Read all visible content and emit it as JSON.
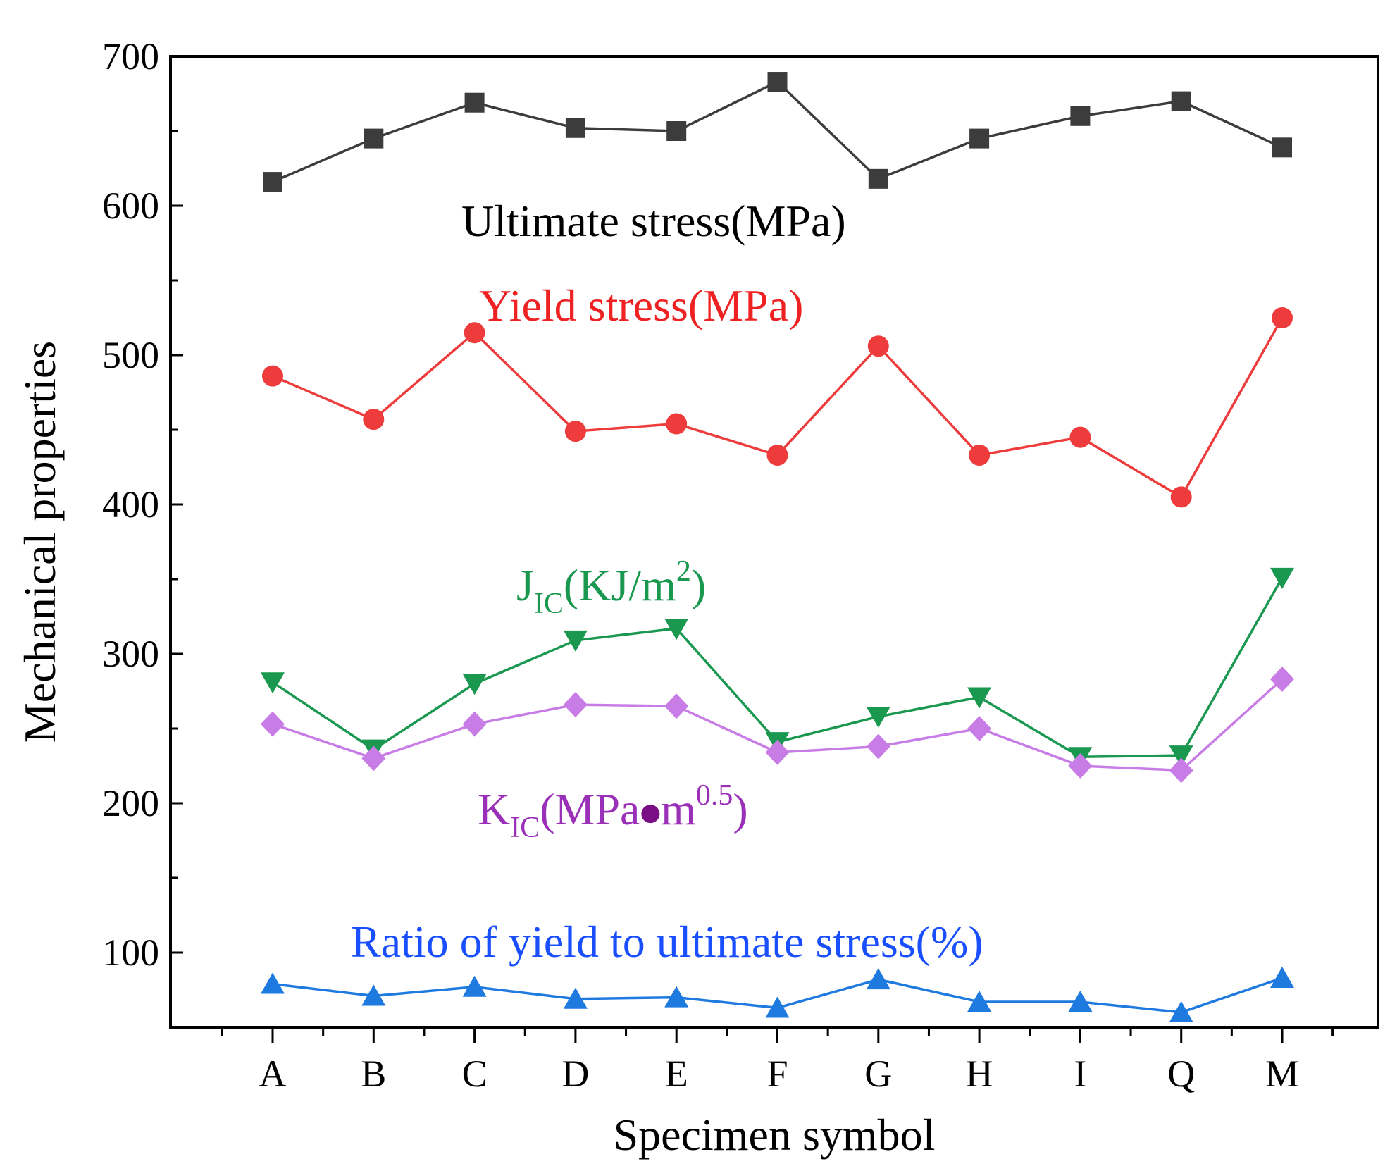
{
  "chart_data": {
    "type": "line",
    "xlabel": "Specimen symbol",
    "ylabel": "Mechanical properties",
    "categories": [
      "A",
      "B",
      "C",
      "D",
      "E",
      "F",
      "G",
      "H",
      "I",
      "Q",
      "M"
    ],
    "ylim": [
      50,
      700
    ],
    "yticks": [
      100,
      200,
      300,
      400,
      500,
      600,
      700
    ],
    "grid": false,
    "series": [
      {
        "name": "Ultimate stress(MPa)",
        "marker": "square",
        "color": "#3c3c3c",
        "values": [
          616,
          645,
          669,
          652,
          650,
          683,
          618,
          645,
          660,
          670,
          639
        ]
      },
      {
        "name": "Yield stress(MPa)",
        "marker": "circle",
        "color": "#ee3b3b",
        "values": [
          486,
          457,
          515,
          449,
          454,
          433,
          506,
          433,
          445,
          405,
          525
        ]
      },
      {
        "name_main": "J",
        "name_sub": "IC",
        "name_rest": "(KJ/m",
        "name_sup": "2",
        "name_end": ")",
        "marker": "triangle-down",
        "color": "#1a9850",
        "values": [
          281,
          236,
          280,
          309,
          317,
          241,
          258,
          271,
          231,
          232,
          351
        ]
      },
      {
        "name_main": "K",
        "name_sub": "IC",
        "name_rest": "(MPa",
        "name_dot": "●",
        "name_rest2": "m",
        "name_sup": "0.5",
        "name_end": ")",
        "marker": "diamond",
        "color": "#c77ce6",
        "values": [
          253,
          230,
          253,
          266,
          265,
          234,
          238,
          250,
          225,
          222,
          283
        ]
      },
      {
        "name": "Ratio of yield to ultimate stress(%)",
        "marker": "triangle-up",
        "color": "#1f7ae0",
        "values": [
          79,
          71,
          77,
          69,
          70,
          63,
          82,
          67,
          67,
          60,
          83
        ]
      }
    ],
    "label_colors": {
      "ultimate": "#000000",
      "yield": "#ee2222",
      "jic": "#1a9850",
      "kic": "#9b30b8",
      "kic_dot": "#7a0f85",
      "ratio": "#1a4fff"
    }
  }
}
